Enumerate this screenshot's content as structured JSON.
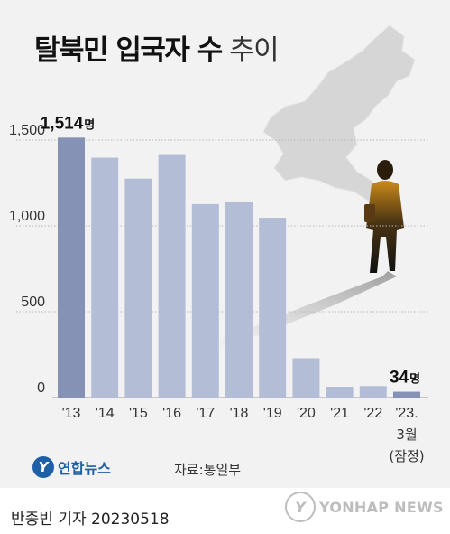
{
  "header": {
    "title_bold": "탈북민 입국자 수",
    "title_light": "추이"
  },
  "source": "자료:통일부",
  "logo": {
    "mark": "Y",
    "text": "연합뉴스"
  },
  "footer": {
    "reporter": "반종빈 기자  20230518",
    "watermark": "YONHAP NEWS"
  },
  "illustration": {
    "map_icon": "korean-peninsula-map-icon",
    "person_icon": "walking-person-silhouette-icon"
  },
  "colors": {
    "bar_highlight": "#8592b6",
    "bar": "#b3bdd6",
    "grid": "#b5b5b5",
    "background": "#f2f2f2",
    "brand": "#1f5fa8"
  },
  "chart_data": {
    "type": "bar",
    "title": "탈북민 입국자 수 추이",
    "categories": [
      "'13",
      "'14",
      "'15",
      "'16",
      "'17",
      "'18",
      "'19",
      "'20",
      "'21",
      "'22",
      "'23."
    ],
    "category_notes": [
      "3월",
      "(잠정)"
    ],
    "values": [
      1514,
      1397,
      1275,
      1418,
      1127,
      1137,
      1047,
      229,
      63,
      67,
      34
    ],
    "data_labels": [
      {
        "index": 0,
        "value": "1,514",
        "unit": "명"
      },
      {
        "index": 10,
        "value": "34",
        "unit": "명"
      }
    ],
    "ylim": [
      0,
      1600
    ],
    "yticks": [
      {
        "value": 0,
        "label": "0"
      },
      {
        "value": 500,
        "label": "500"
      },
      {
        "value": 1000,
        "label": "1,000"
      },
      {
        "value": 1500,
        "label": "1,500"
      }
    ],
    "grid": true,
    "xlabel": "",
    "ylabel": ""
  }
}
